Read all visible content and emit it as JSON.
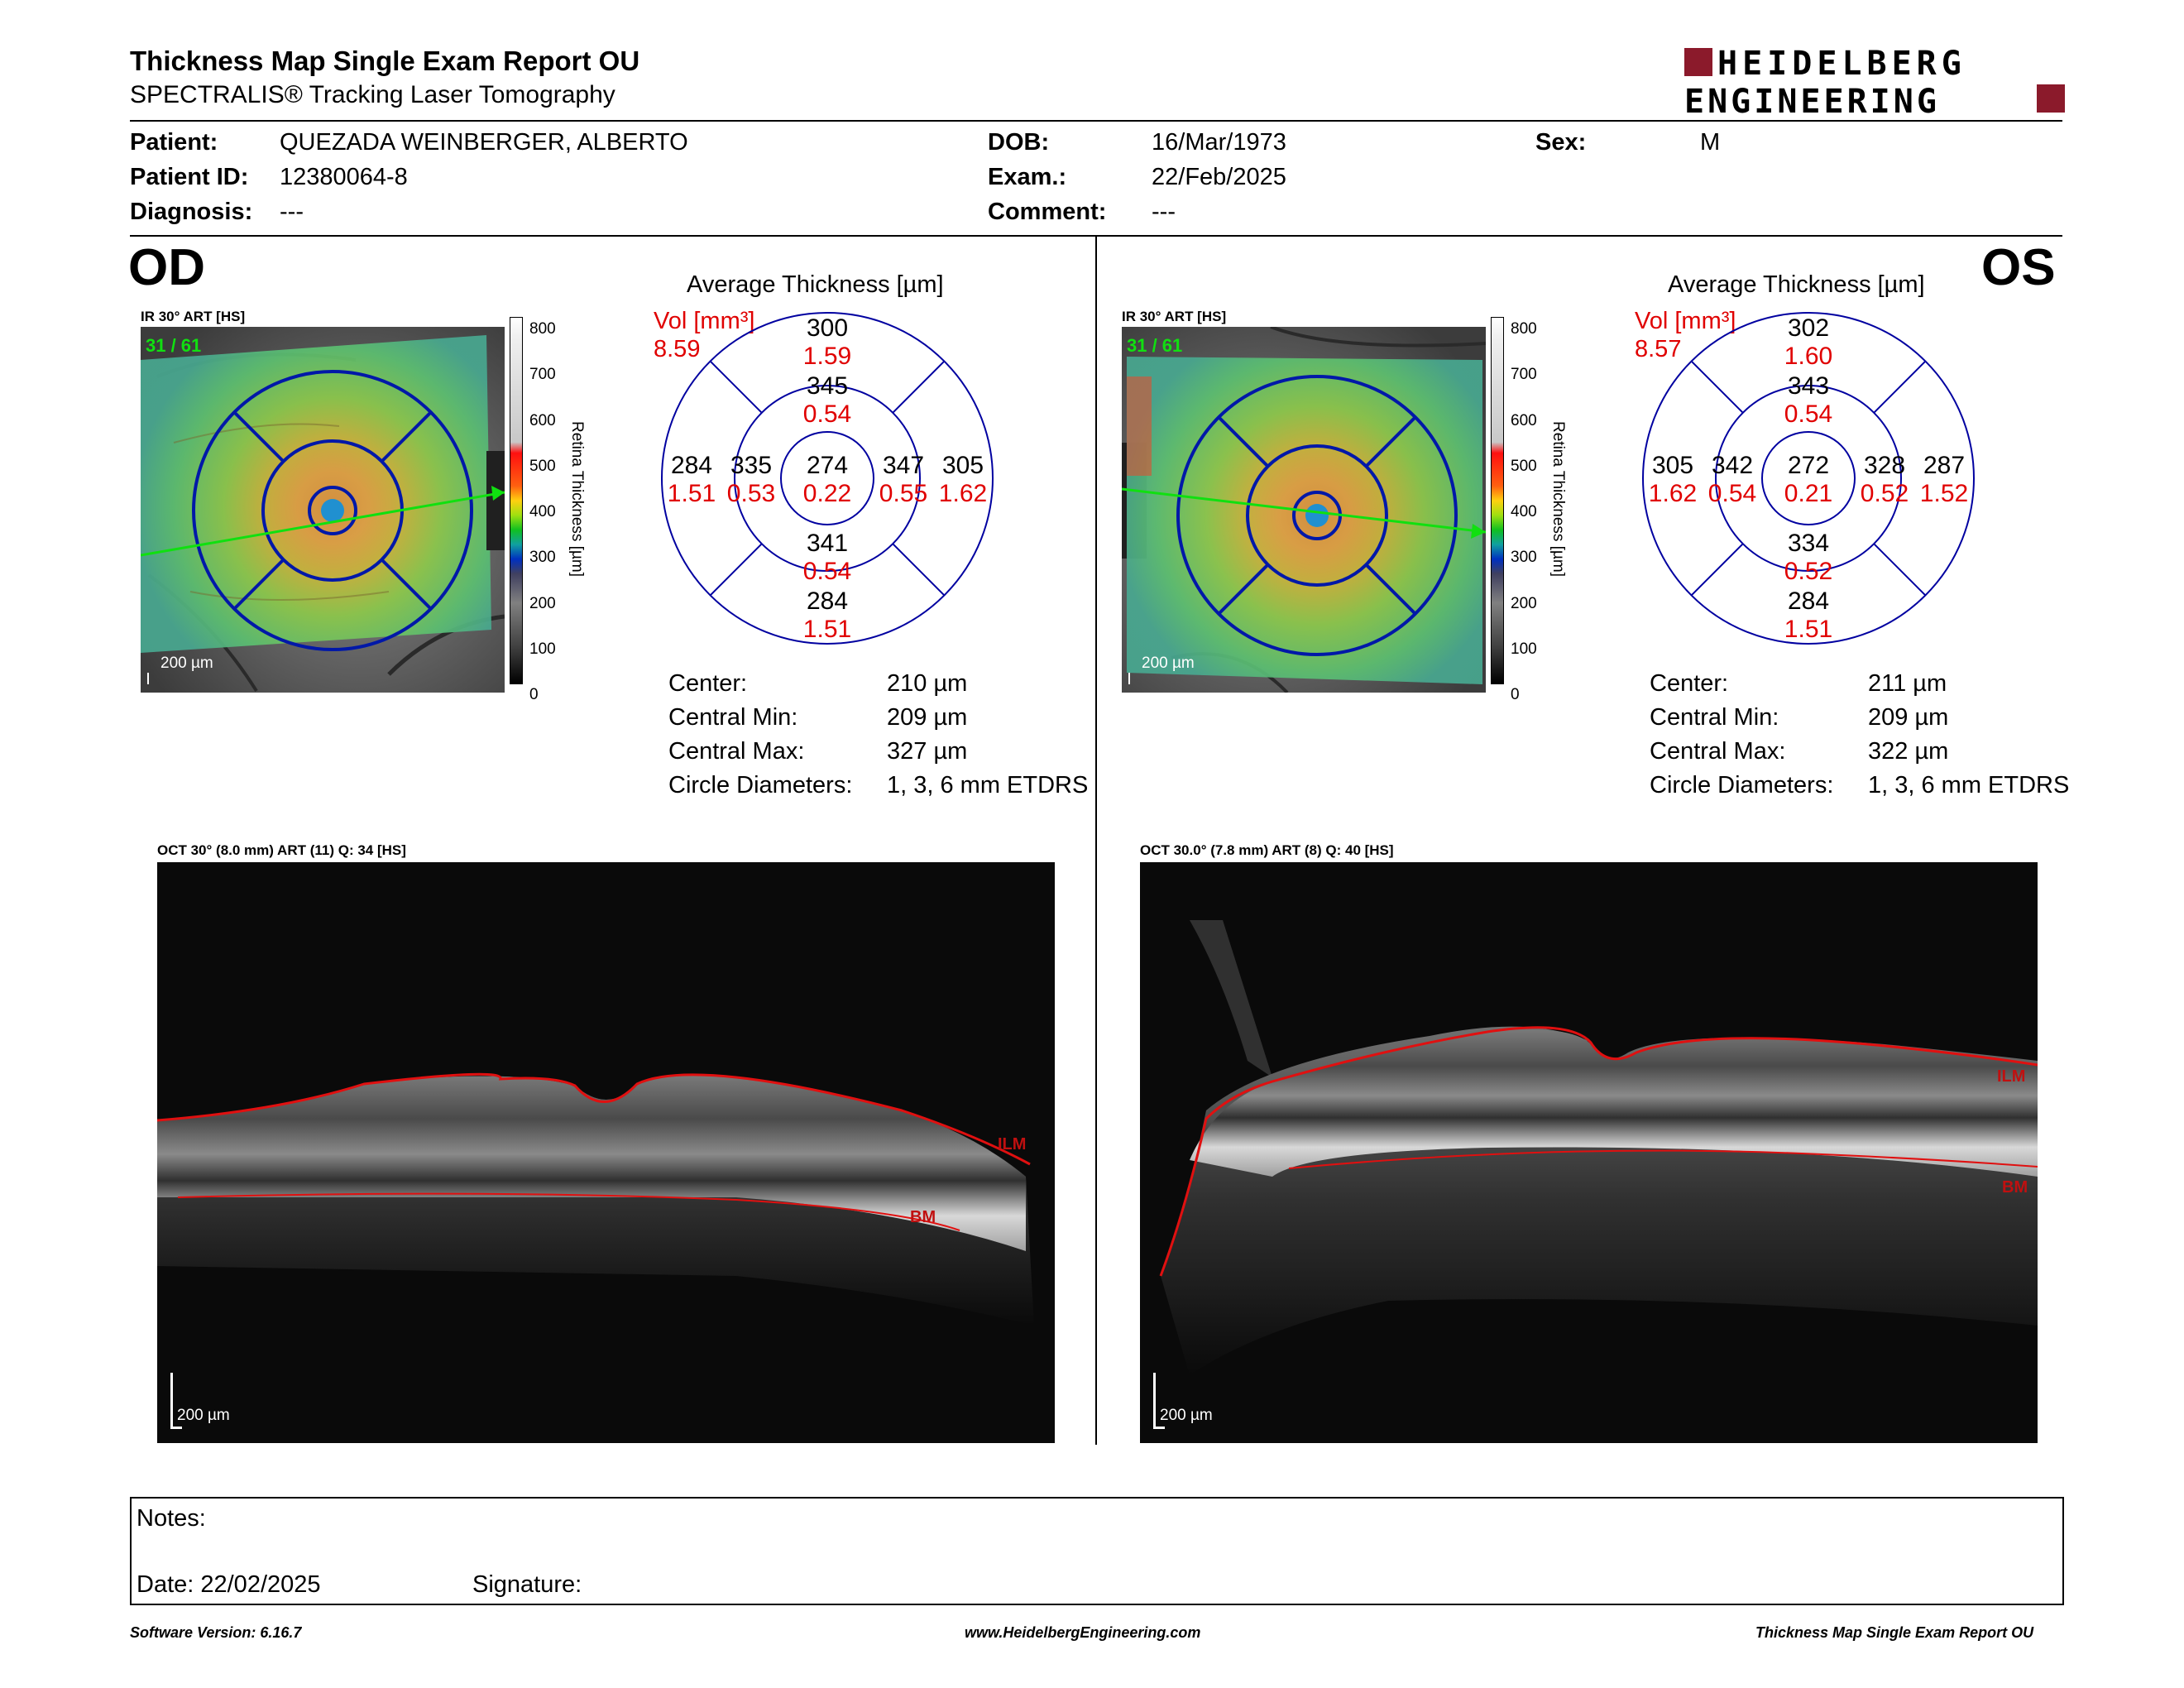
{
  "header": {
    "title": "Thickness Map Single Exam Report OU",
    "subtitle": "SPECTRALIS® Tracking Laser Tomography",
    "logo_line1": "HEIDELBERG",
    "logo_line2": "ENGINEERING"
  },
  "patient": {
    "patient_label": "Patient:",
    "patient_value": "QUEZADA WEINBERGER, ALBERTO",
    "patient_id_label": "Patient ID:",
    "patient_id_value": "12380064-8",
    "diagnosis_label": "Diagnosis:",
    "diagnosis_value": "---",
    "dob_label": "DOB:",
    "dob_value": "16/Mar/1973",
    "exam_label": "Exam.:",
    "exam_value": "22/Feb/2025",
    "comment_label": "Comment:",
    "comment_value": "---",
    "sex_label": "Sex:",
    "sex_value": "M"
  },
  "od": {
    "eye": "OD",
    "fundus_label": "IR 30° ART [HS]",
    "fundus_counter": "31 / 61",
    "fundus_scale": "200 µm",
    "colorbar_ticks": [
      "800",
      "700",
      "600",
      "500",
      "400",
      "300",
      "200",
      "100",
      "0"
    ],
    "colorbar_title": "Retina Thickness [µm]",
    "avg_title": "Average Thickness [µm]",
    "vol_label": "Vol [mm³]",
    "vol_value": "8.59",
    "etdrs": {
      "outer_sup": "300",
      "outer_sup_vol": "1.59",
      "inner_sup": "345",
      "inner_sup_vol": "0.54",
      "outer_temp": "284",
      "outer_temp_vol": "1.51",
      "inner_temp": "335",
      "inner_temp_vol": "0.53",
      "center": "274",
      "center_vol": "0.22",
      "inner_nasal": "347",
      "inner_nasal_vol": "0.55",
      "outer_nasal": "305",
      "outer_nasal_vol": "1.62",
      "inner_inf": "341",
      "inner_inf_vol": "0.54",
      "outer_inf": "284",
      "outer_inf_vol": "1.51"
    },
    "stats": {
      "center_label": "Center:",
      "center_value": "210 µm",
      "min_label": "Central Min:",
      "min_value": "209 µm",
      "max_label": "Central Max:",
      "max_value": "327 µm",
      "diam_label": "Circle Diameters:",
      "diam_value": "1, 3, 6 mm ETDRS"
    },
    "oct_label": "OCT 30° (8.0 mm) ART (11) Q: 34 [HS]",
    "oct_scale": "200 µm",
    "ilm": "ILM",
    "bm": "BM"
  },
  "os": {
    "eye": "OS",
    "fundus_label": "IR 30° ART [HS]",
    "fundus_counter": "31 / 61",
    "fundus_scale": "200 µm",
    "colorbar_ticks": [
      "800",
      "700",
      "600",
      "500",
      "400",
      "300",
      "200",
      "100",
      "0"
    ],
    "colorbar_title": "Retina Thickness [µm]",
    "avg_title": "Average Thickness [µm]",
    "vol_label": "Vol [mm³]",
    "vol_value": "8.57",
    "etdrs": {
      "outer_sup": "302",
      "outer_sup_vol": "1.60",
      "inner_sup": "343",
      "inner_sup_vol": "0.54",
      "outer_temp": "287",
      "outer_temp_vol": "1.52",
      "inner_temp": "328",
      "inner_temp_vol": "0.52",
      "center": "272",
      "center_vol": "0.21",
      "inner_nasal": "342",
      "inner_nasal_vol": "0.54",
      "outer_nasal": "305",
      "outer_nasal_vol": "1.62",
      "inner_inf": "334",
      "inner_inf_vol": "0.52",
      "outer_inf": "284",
      "outer_inf_vol": "1.51"
    },
    "stats": {
      "center_label": "Center:",
      "center_value": "211 µm",
      "min_label": "Central Min:",
      "min_value": "209 µm",
      "max_label": "Central Max:",
      "max_value": "322 µm",
      "diam_label": "Circle Diameters:",
      "diam_value": "1, 3, 6 mm ETDRS"
    },
    "oct_label": "OCT 30.0° (7.8 mm) ART (8) Q: 40 [HS]",
    "oct_scale": "200 µm",
    "ilm": "ILM",
    "bm": "BM"
  },
  "notes": {
    "notes_label": "Notes:",
    "date_label": "Date: 22/02/2025",
    "signature_label": "Signature:"
  },
  "footer": {
    "software": "Software Version: 6.16.7",
    "website": "www.HeidelbergEngineering.com",
    "report": "Thickness Map Single Exam Report OU"
  },
  "colors": {
    "brand_red": "#8b1a2b",
    "grid_blue": "#0000a0",
    "volume_red": "#e00000",
    "ilm_line": "#e01010"
  }
}
